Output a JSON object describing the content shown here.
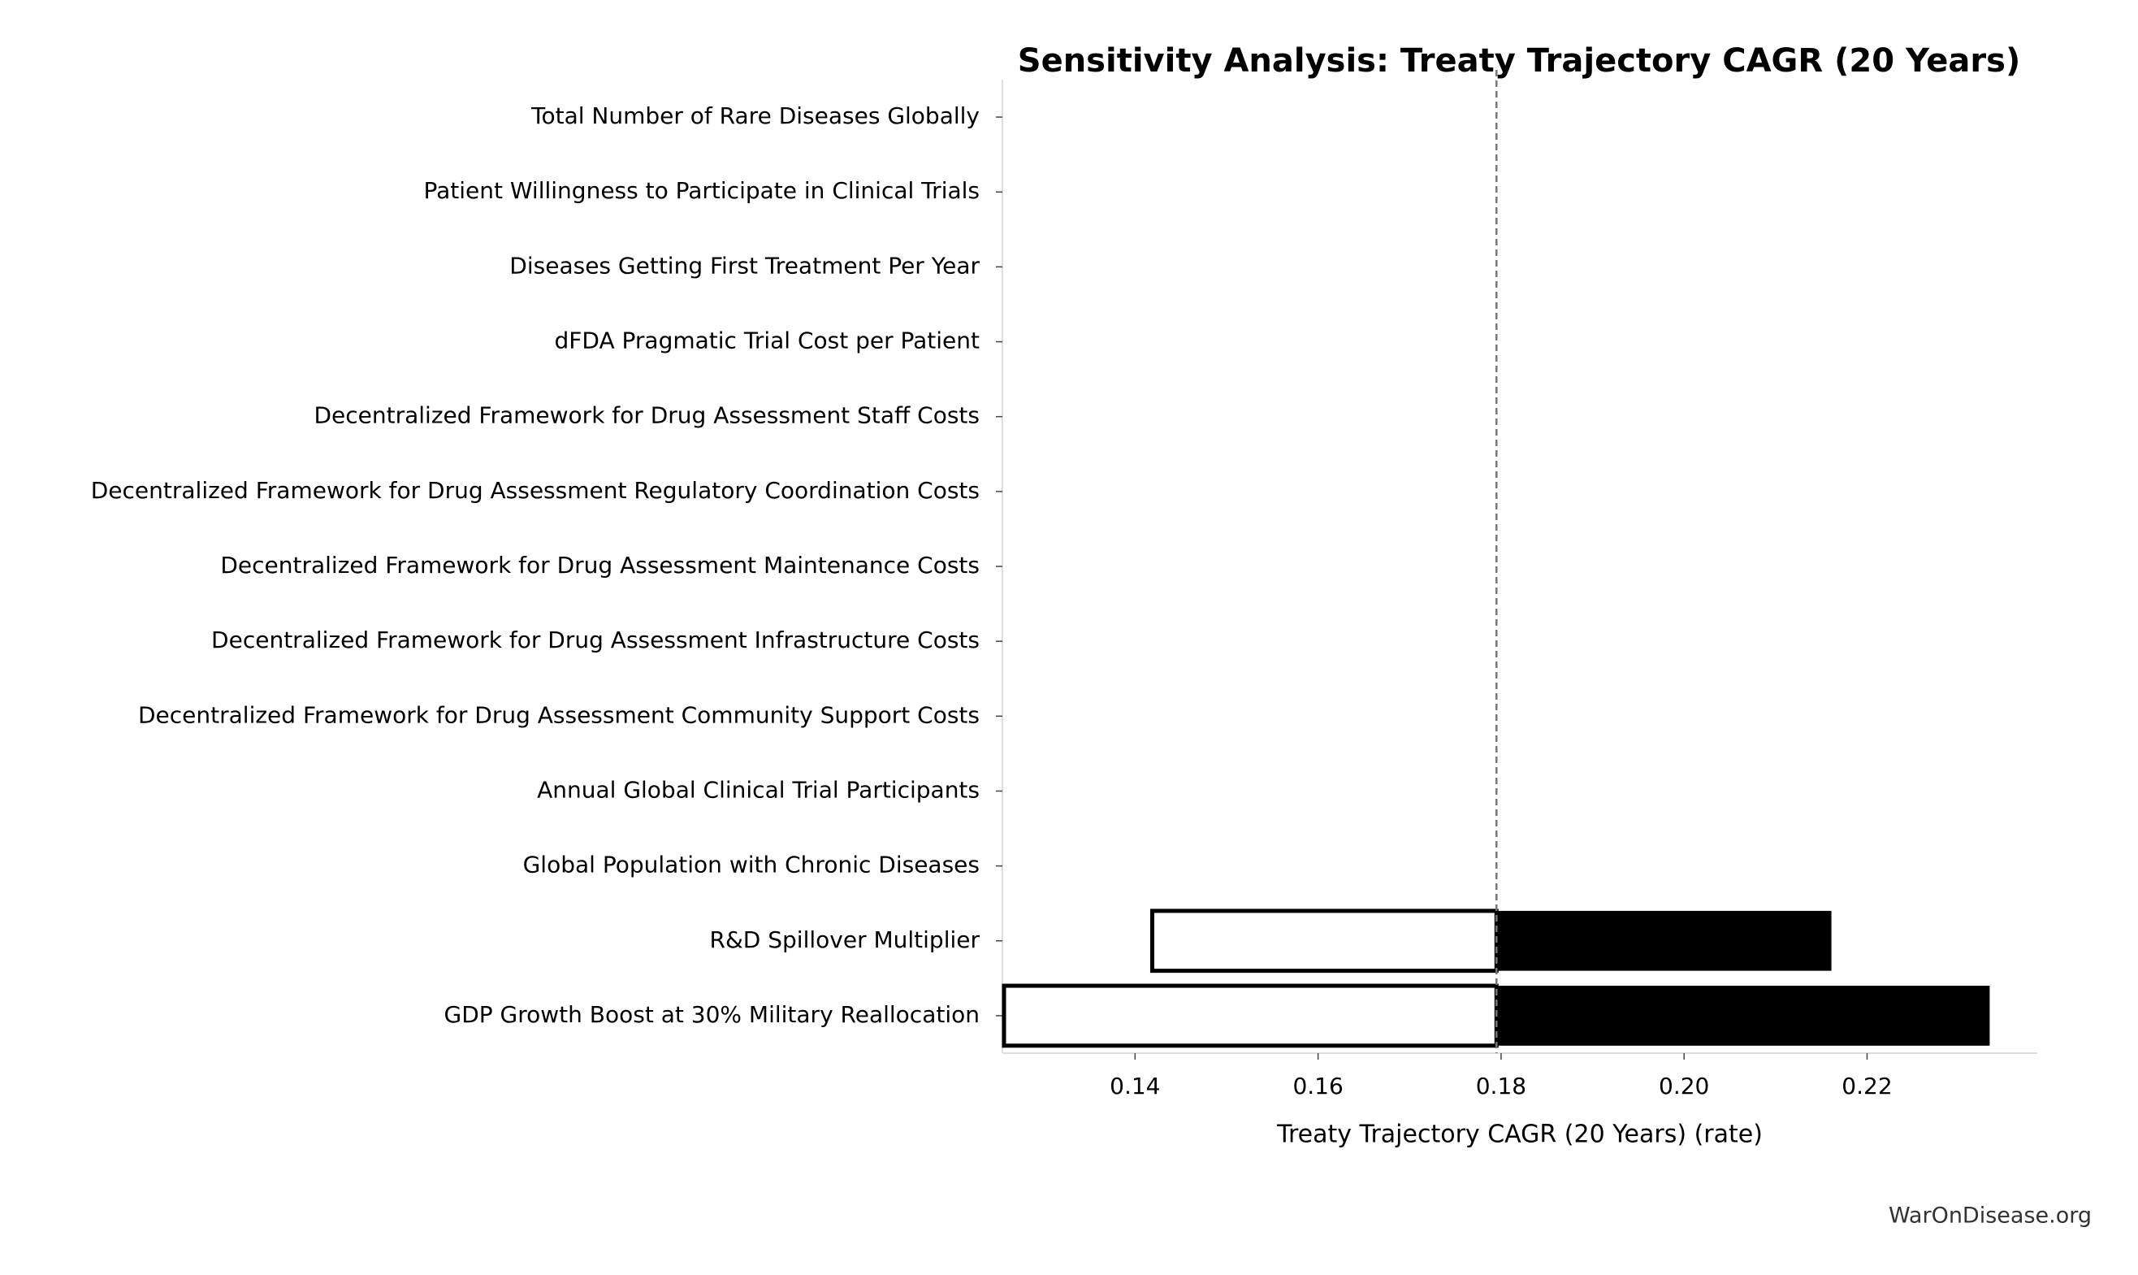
{
  "chart_data": {
    "type": "tornado",
    "title": "Sensitivity Analysis: Treaty Trajectory CAGR (20 Years)",
    "xlabel": "Treaty Trajectory CAGR (20 Years) (rate)",
    "footer": "WarOnDisease.org",
    "categories": [
      "Total Number of Rare Diseases Globally",
      "Patient Willingness to Participate in Clinical Trials",
      "Diseases Getting First Treatment Per Year",
      "dFDA Pragmatic Trial Cost per Patient",
      "Decentralized Framework for Drug Assessment Staff Costs",
      "Decentralized Framework for Drug Assessment Regulatory Coordination Costs",
      "Decentralized Framework for Drug Assessment Maintenance Costs",
      "Decentralized Framework for Drug Assessment Infrastructure Costs",
      "Decentralized Framework for Drug Assessment Community Support Costs",
      "Annual Global Clinical Trial Participants",
      "Global Population with Chronic Diseases",
      "R&D Spillover Multiplier",
      "GDP Growth Boost at 30% Military Reallocation"
    ],
    "baseline": 0.1795,
    "low": [
      null,
      null,
      null,
      null,
      null,
      null,
      null,
      null,
      null,
      null,
      null,
      0.1417,
      0.1255
    ],
    "high": [
      null,
      null,
      null,
      null,
      null,
      null,
      null,
      null,
      null,
      null,
      null,
      0.2161,
      0.2334
    ],
    "low_color": "#ffffff",
    "high_color": "#000000",
    "xlim": [
      0.1255,
      0.2386
    ],
    "xticks": [
      0.14,
      0.16,
      0.18,
      {
        "value": 0.2,
        "label": "0.20"
      },
      0.22
    ]
  }
}
